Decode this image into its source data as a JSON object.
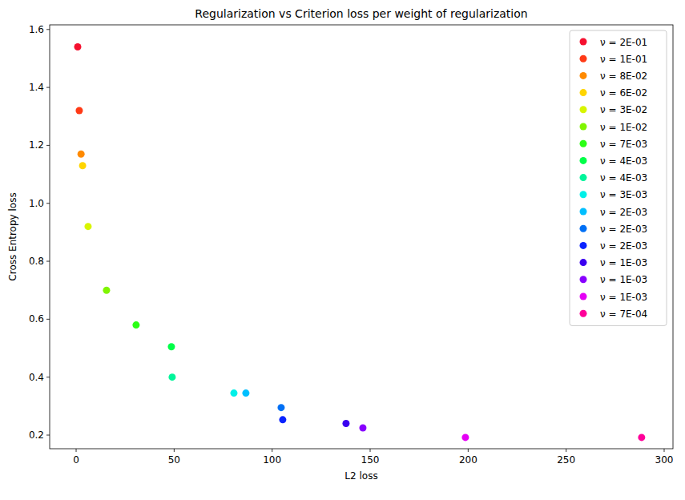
{
  "chart_data": {
    "type": "scatter",
    "title": "Regularization vs Criterion loss per weight of regularization",
    "x_label": "L2 loss",
    "y_label": "Cross Entropy loss",
    "xlim": [
      -13.5,
      304.5
    ],
    "ylim": [
      0.153,
      1.616
    ],
    "xticks": [
      0,
      50,
      100,
      150,
      200,
      250,
      300
    ],
    "yticks": [
      0.2,
      0.4,
      0.6,
      0.8,
      {
        "value": 1,
        "label": "1.0"
      },
      1.2,
      1.4,
      1.6
    ],
    "grid": false,
    "legend": "upper right",
    "marker": "circle",
    "series": [
      {
        "name": "ν = 2E-01",
        "color": "#f5102f",
        "x": [
          0.8
        ],
        "values": [
          1.54
        ]
      },
      {
        "name": "ν = 1E-01",
        "color": "#ff3a16",
        "x": [
          1.6
        ],
        "values": [
          1.32
        ]
      },
      {
        "name": "ν = 8E-02",
        "color": "#ff8a00",
        "x": [
          2.5
        ],
        "values": [
          1.17
        ]
      },
      {
        "name": "ν = 6E-02",
        "color": "#ffd500",
        "x": [
          3.3
        ],
        "values": [
          1.13
        ]
      },
      {
        "name": "ν = 3E-02",
        "color": "#d8f500",
        "x": [
          6.1
        ],
        "values": [
          0.92
        ]
      },
      {
        "name": "ν = 1E-02",
        "color": "#80f500",
        "x": [
          15.5
        ],
        "values": [
          0.7
        ]
      },
      {
        "name": "ν = 7E-03",
        "color": "#2bff15",
        "x": [
          30.6
        ],
        "values": [
          0.58
        ]
      },
      {
        "name": "ν = 4E-03",
        "color": "#00ff48",
        "x": [
          48.6
        ],
        "values": [
          0.505
        ]
      },
      {
        "name": "ν = 4E-03",
        "color": "#00f59a",
        "x": [
          49
        ],
        "values": [
          0.4
        ]
      },
      {
        "name": "ν = 3E-03",
        "color": "#00f0e8",
        "x": [
          80.5
        ],
        "values": [
          0.345
        ]
      },
      {
        "name": "ν = 2E-03",
        "color": "#00bfff",
        "x": [
          86.6
        ],
        "values": [
          0.345
        ]
      },
      {
        "name": "ν = 2E-03",
        "color": "#0070f5",
        "x": [
          104.6
        ],
        "values": [
          0.295
        ]
      },
      {
        "name": "ν = 2E-03",
        "color": "#0a23ff",
        "x": [
          105.4
        ],
        "values": [
          0.253
        ]
      },
      {
        "name": "ν = 1E-03",
        "color": "#3a00f0",
        "x": [
          137.7
        ],
        "values": [
          0.24
        ]
      },
      {
        "name": "ν = 1E-03",
        "color": "#8800ff",
        "x": [
          146.3
        ],
        "values": [
          0.225
        ]
      },
      {
        "name": "ν = 1E-03",
        "color": "#e500f5",
        "x": [
          198.6
        ],
        "values": [
          0.192
        ]
      },
      {
        "name": "ν = 7E-04",
        "color": "#ff0099",
        "x": [
          288.5
        ],
        "values": [
          0.192
        ]
      }
    ]
  }
}
